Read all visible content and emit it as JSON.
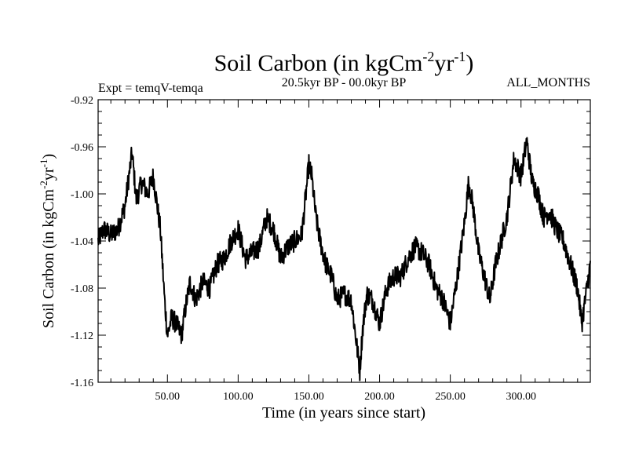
{
  "chart_data": {
    "type": "line",
    "title": "Soil Carbon (in kgCm",
    "title_sup1": "-2",
    "title_mid": "yr",
    "title_sup2": "-1",
    "title_end": ")",
    "subtitle_left": "Expt = temqV-temqa",
    "subtitle_center": "20.5kyr BP - 00.0kyr BP",
    "subtitle_right": "ALL_MONTHS",
    "xlabel": "Time (in years since start)",
    "ylabel_main": "Soil Carbon (in kgCm",
    "ylabel_sup1": "-2",
    "ylabel_mid": "yr",
    "ylabel_sup2": "-1",
    "ylabel_end": ")",
    "xlim": [
      1,
      349
    ],
    "ylim": [
      -1.16,
      -0.92
    ],
    "xticks": [
      {
        "value": 50,
        "label": "50.00"
      },
      {
        "value": 100,
        "label": "100.00"
      },
      {
        "value": 150,
        "label": "150.00"
      },
      {
        "value": 200,
        "label": "200.00"
      },
      {
        "value": 250,
        "label": "250.00"
      },
      {
        "value": 300,
        "label": "300.00"
      }
    ],
    "yticks": [
      {
        "value": -0.92,
        "label": "-0.92"
      },
      {
        "value": -0.96,
        "label": "-0.96"
      },
      {
        "value": -1.0,
        "label": "-1.00"
      },
      {
        "value": -1.04,
        "label": "-1.04"
      },
      {
        "value": -1.08,
        "label": "-1.08"
      },
      {
        "value": -1.12,
        "label": "-1.12"
      },
      {
        "value": -1.16,
        "label": "-1.16"
      }
    ],
    "series": [
      {
        "name": "Soil Carbon",
        "x": [
          1,
          5,
          10,
          15,
          20,
          25,
          28,
          32,
          36,
          40,
          45,
          48,
          50,
          53,
          56,
          60,
          63,
          66,
          70,
          75,
          80,
          85,
          90,
          95,
          100,
          105,
          110,
          115,
          120,
          125,
          130,
          135,
          140,
          145,
          150,
          152,
          155,
          158,
          162,
          166,
          170,
          175,
          180,
          183,
          186,
          188,
          191,
          195,
          200,
          205,
          210,
          215,
          220,
          225,
          230,
          235,
          240,
          245,
          250,
          255,
          260,
          263,
          266,
          270,
          275,
          278,
          282,
          286,
          290,
          295,
          300,
          304,
          308,
          312,
          316,
          320,
          325,
          330,
          335,
          340,
          343,
          346,
          349
        ],
        "values": [
          -1.04,
          -1.03,
          -1.035,
          -1.03,
          -1.01,
          -0.965,
          -1.005,
          -0.99,
          -1.0,
          -0.985,
          -1.03,
          -1.09,
          -1.12,
          -1.105,
          -1.11,
          -1.12,
          -1.095,
          -1.075,
          -1.09,
          -1.075,
          -1.08,
          -1.06,
          -1.055,
          -1.04,
          -1.03,
          -1.055,
          -1.05,
          -1.045,
          -1.02,
          -1.03,
          -1.055,
          -1.045,
          -1.04,
          -1.035,
          -0.975,
          -0.985,
          -1.02,
          -1.04,
          -1.06,
          -1.07,
          -1.09,
          -1.085,
          -1.09,
          -1.12,
          -1.15,
          -1.115,
          -1.085,
          -1.09,
          -1.11,
          -1.08,
          -1.07,
          -1.07,
          -1.055,
          -1.045,
          -1.05,
          -1.06,
          -1.08,
          -1.09,
          -1.11,
          -1.07,
          -1.025,
          -0.99,
          -1.01,
          -1.05,
          -1.075,
          -1.09,
          -1.06,
          -1.04,
          -1.02,
          -0.97,
          -0.985,
          -0.955,
          -0.99,
          -1.0,
          -1.02,
          -1.015,
          -1.03,
          -1.04,
          -1.06,
          -1.08,
          -1.11,
          -1.085,
          -1.06
        ]
      }
    ]
  }
}
